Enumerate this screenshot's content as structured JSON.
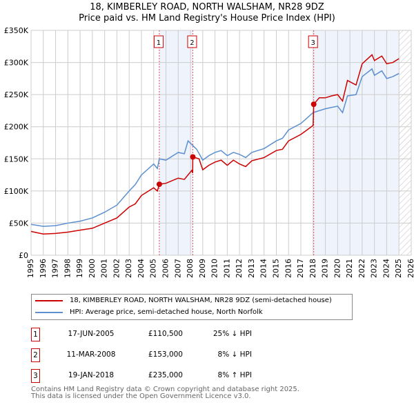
{
  "chart_data": {
    "type": "line",
    "title": "18, KIMBERLEY ROAD, NORTH WALSHAM, NR28 9DZ",
    "subtitle": "Price paid vs. HM Land Registry's House Price Index (HPI)",
    "xlim": [
      1995,
      2026
    ],
    "ylim": [
      0,
      350000
    ],
    "x_ticks": [
      "1995",
      "1996",
      "1997",
      "1998",
      "1999",
      "2000",
      "2001",
      "2002",
      "2003",
      "2004",
      "2005",
      "2006",
      "2007",
      "2008",
      "2009",
      "2010",
      "2011",
      "2012",
      "2013",
      "2014",
      "2015",
      "2016",
      "2017",
      "2018",
      "2019",
      "2020",
      "2021",
      "2022",
      "2023",
      "2024",
      "2025",
      "2026"
    ],
    "y_ticks": [
      {
        "v": 0,
        "label": "£0"
      },
      {
        "v": 50000,
        "label": "£50K"
      },
      {
        "v": 100000,
        "label": "£100K"
      },
      {
        "v": 150000,
        "label": "£150K"
      },
      {
        "v": 200000,
        "label": "£200K"
      },
      {
        "v": 250000,
        "label": "£250K"
      },
      {
        "v": 300000,
        "label": "£300K"
      },
      {
        "v": 350000,
        "label": "£350K"
      }
    ],
    "grid": true,
    "series": [
      {
        "name": "18, KIMBERLEY ROAD, NORTH WALSHAM, NR28 9DZ (semi-detached house)",
        "color": "#cc0000",
        "x": [
          1995,
          1996,
          1997,
          1998,
          1999,
          2000,
          2001,
          2002,
          2003,
          2003.5,
          2004,
          2005,
          2005.3,
          2005.46,
          2006,
          2007,
          2007.5,
          2008.1,
          2008.18,
          2008.19,
          2008.7,
          2009,
          2009.5,
          2010,
          2010.5,
          2011,
          2011.5,
          2012,
          2012.5,
          2013,
          2014,
          2015,
          2015.5,
          2016,
          2017,
          2018.0,
          2018.05,
          2018.5,
          2019,
          2019.5,
          2020,
          2020.4,
          2020.8,
          2021.5,
          2022,
          2022.8,
          2023,
          2023.6,
          2024,
          2024.5,
          2025
        ],
        "y": [
          37000,
          33000,
          34000,
          36000,
          39000,
          42000,
          50000,
          58000,
          75000,
          80000,
          93000,
          105000,
          100000,
          110500,
          112000,
          120000,
          118000,
          132000,
          128000,
          153000,
          150000,
          133000,
          140000,
          145000,
          148000,
          140000,
          148000,
          142000,
          138000,
          147000,
          152000,
          163000,
          165000,
          178000,
          188000,
          202000,
          235000,
          245000,
          245000,
          248000,
          250000,
          240000,
          272000,
          265000,
          298000,
          312000,
          303000,
          310000,
          298000,
          300000,
          306000
        ]
      },
      {
        "name": "HPI: Average price, semi-detached house, North Norfolk",
        "color": "#5b8fd0",
        "x": [
          1995,
          1996,
          1997,
          1998,
          1999,
          2000,
          2001,
          2002,
          2003,
          2003.5,
          2004,
          2005,
          2005.3,
          2005.46,
          2006,
          2007,
          2007.5,
          2007.8,
          2008.5,
          2009,
          2009.5,
          2010,
          2010.5,
          2011,
          2011.5,
          2012,
          2012.5,
          2013,
          2014,
          2015,
          2015.5,
          2016,
          2017,
          2018,
          2019,
          2019.5,
          2020,
          2020.4,
          2020.8,
          2021.5,
          2022,
          2022.8,
          2023,
          2023.6,
          2024,
          2024.5,
          2025
        ],
        "y": [
          48000,
          45000,
          46000,
          50000,
          53000,
          58000,
          67000,
          78000,
          100000,
          110000,
          125000,
          142000,
          135000,
          150000,
          148000,
          160000,
          158000,
          178000,
          165000,
          148000,
          155000,
          160000,
          163000,
          155000,
          160000,
          157000,
          152000,
          160000,
          166000,
          178000,
          182000,
          195000,
          205000,
          222000,
          228000,
          230000,
          232000,
          222000,
          248000,
          250000,
          278000,
          290000,
          280000,
          287000,
          275000,
          278000,
          283000
        ]
      }
    ],
    "sales": [
      {
        "n": "1",
        "x": 2005.46,
        "date": "17-JUN-2005",
        "price_value": 110500,
        "price": "£110,500",
        "hpi": "25% ↓ HPI"
      },
      {
        "n": "2",
        "x": 2008.19,
        "date": "11-MAR-2008",
        "price_value": 153000,
        "price": "£153,000",
        "hpi": "8% ↓ HPI"
      },
      {
        "n": "3",
        "x": 2018.05,
        "date": "19-JAN-2018",
        "price_value": 235000,
        "price": "£235,000",
        "hpi": "8% ↑ HPI"
      }
    ],
    "shaded_ranges": [
      [
        2005.46,
        2008.19
      ],
      [
        2018.05,
        2025
      ]
    ],
    "hatched_from": 2025,
    "legend_placement": "below"
  },
  "footer": [
    "Contains HM Land Registry data © Crown copyright and database right 2025.",
    "This data is licensed under the Open Government Licence v3.0."
  ]
}
